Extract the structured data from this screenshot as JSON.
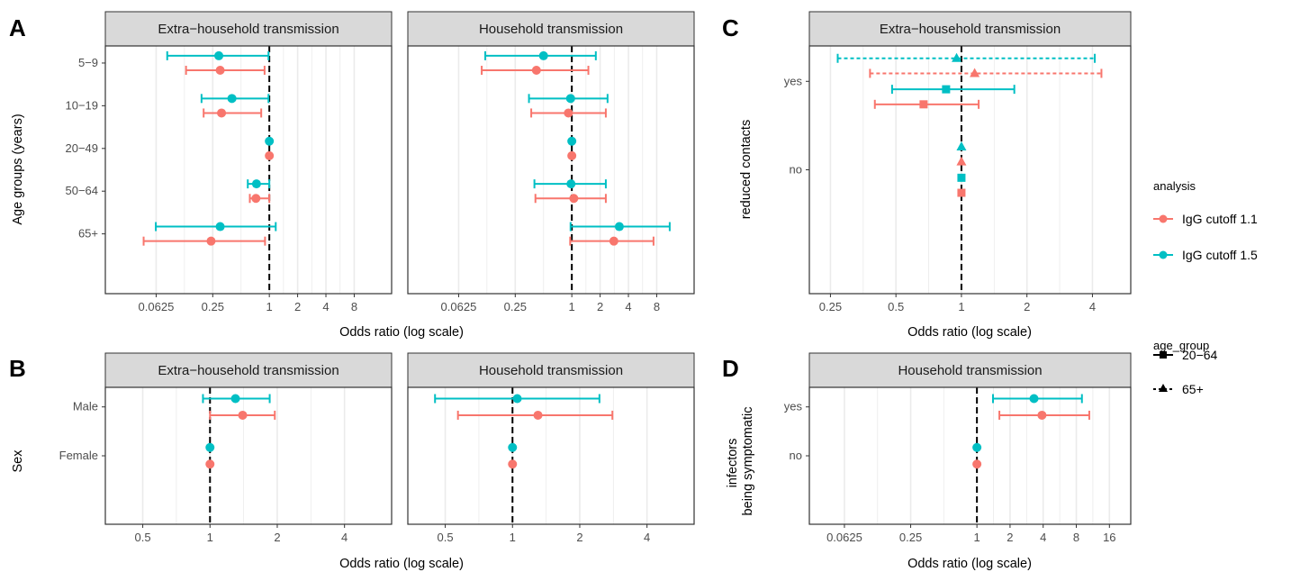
{
  "colors": {
    "cutoff_1_1": "#F8766D",
    "cutoff_1_5": "#00BFC4",
    "strip_fill": "#D9D9D9",
    "grid": "#EBEBEB",
    "border": "#333333"
  },
  "panel_labels": [
    "A",
    "B",
    "C",
    "D"
  ],
  "legend": {
    "analysis_title": "analysis",
    "analysis_items": [
      "IgG cutoff 1.1",
      "IgG cutoff 1.5"
    ],
    "age_group_title": "age_group",
    "age_group_items": [
      "20−64",
      "65+"
    ]
  },
  "chart_data": [
    {
      "id": "A-extra",
      "panel": "A",
      "type": "scatter",
      "title": "Extra−household transmission",
      "xlabel": "Odds ratio (log scale)",
      "ylabel": "Age groups (years)",
      "xscale": "log2",
      "xticks": [
        0.0625,
        0.25,
        1,
        2,
        4,
        8
      ],
      "xtick_labels": [
        "0.0625",
        "0.25",
        "1",
        "2",
        "4",
        "8"
      ],
      "xlim": [
        0.018,
        20
      ],
      "ref_line": 1,
      "categories": [
        "5−9",
        "10−19",
        "20−49",
        "50−64",
        "65+"
      ],
      "series": [
        {
          "name": "IgG cutoff 1.1",
          "color_key": "cutoff_1_1",
          "offset": 0.17,
          "marker": "circle",
          "estimate": [
            0.3,
            0.31,
            1.0,
            0.72,
            0.24
          ],
          "lower": [
            0.13,
            0.2,
            null,
            0.62,
            0.046
          ],
          "upper": [
            0.89,
            0.82,
            null,
            1.0,
            0.9
          ]
        },
        {
          "name": "IgG cutoff 1.5",
          "color_key": "cutoff_1_5",
          "offset": -0.17,
          "marker": "circle",
          "estimate": [
            0.29,
            0.4,
            1.0,
            0.73,
            0.3
          ],
          "lower": [
            0.082,
            0.19,
            null,
            0.59,
            0.062
          ],
          "upper": [
            0.98,
            0.98,
            null,
            1.0,
            1.17
          ]
        }
      ]
    },
    {
      "id": "A-household",
      "panel": "A",
      "type": "scatter",
      "title": "Household transmission",
      "xlabel": "Odds ratio (log scale)",
      "xscale": "log2",
      "xticks": [
        0.0625,
        0.25,
        1,
        2,
        4,
        8
      ],
      "xtick_labels": [
        "0.0625",
        "0.25",
        "1",
        "2",
        "4",
        "8"
      ],
      "xlim": [
        0.018,
        20
      ],
      "ref_line": 1,
      "categories": [
        "5−9",
        "10−19",
        "20−49",
        "50−64",
        "65+"
      ],
      "series": [
        {
          "name": "IgG cutoff 1.1",
          "color_key": "cutoff_1_1",
          "offset": 0.17,
          "marker": "circle",
          "estimate": [
            0.42,
            0.92,
            1.0,
            1.05,
            2.8
          ],
          "lower": [
            0.11,
            0.37,
            null,
            0.41,
            0.96
          ],
          "upper": [
            1.5,
            2.3,
            null,
            2.3,
            7.4
          ]
        },
        {
          "name": "IgG cutoff 1.5",
          "color_key": "cutoff_1_5",
          "offset": -0.17,
          "marker": "circle",
          "estimate": [
            0.5,
            0.97,
            1.0,
            0.98,
            3.2
          ],
          "lower": [
            0.12,
            0.35,
            null,
            0.4,
            0.97
          ],
          "upper": [
            1.8,
            2.4,
            null,
            2.3,
            11
          ]
        }
      ]
    },
    {
      "id": "B-extra",
      "panel": "B",
      "type": "scatter",
      "title": "Extra−household transmission",
      "xlabel": "Odds ratio (log scale)",
      "ylabel": "Sex",
      "xscale": "log2",
      "xticks": [
        0.5,
        1,
        2,
        4
      ],
      "xtick_labels": [
        "0.5",
        "1",
        "2",
        "4"
      ],
      "xlim": [
        0.34,
        6.5
      ],
      "ref_line": 1,
      "categories": [
        "Male",
        "Female"
      ],
      "series": [
        {
          "name": "IgG cutoff 1.1",
          "color_key": "cutoff_1_1",
          "offset": 0.17,
          "marker": "circle",
          "estimate": [
            1.4,
            1.0
          ],
          "lower": [
            1.0,
            null
          ],
          "upper": [
            1.95,
            null
          ]
        },
        {
          "name": "IgG cutoff 1.5",
          "color_key": "cutoff_1_5",
          "offset": -0.17,
          "marker": "circle",
          "estimate": [
            1.3,
            1.0
          ],
          "lower": [
            0.93,
            null
          ],
          "upper": [
            1.85,
            null
          ]
        }
      ]
    },
    {
      "id": "B-household",
      "panel": "B",
      "type": "scatter",
      "title": "Household transmission",
      "xlabel": "Odds ratio (log scale)",
      "xscale": "log2",
      "xticks": [
        0.5,
        1,
        2,
        4
      ],
      "xtick_labels": [
        "0.5",
        "1",
        "2",
        "4"
      ],
      "xlim": [
        0.34,
        6.5
      ],
      "ref_line": 1,
      "categories": [
        "Male",
        "Female"
      ],
      "series": [
        {
          "name": "IgG cutoff 1.1",
          "color_key": "cutoff_1_1",
          "offset": 0.17,
          "marker": "circle",
          "estimate": [
            1.3,
            1.0
          ],
          "lower": [
            0.57,
            null
          ],
          "upper": [
            2.8,
            null
          ]
        },
        {
          "name": "IgG cutoff 1.5",
          "color_key": "cutoff_1_5",
          "offset": -0.17,
          "marker": "circle",
          "estimate": [
            1.05,
            1.0
          ],
          "lower": [
            0.45,
            null
          ],
          "upper": [
            2.45,
            null
          ]
        }
      ]
    },
    {
      "id": "C-extra",
      "panel": "C",
      "type": "scatter",
      "title": "Extra−household transmission",
      "xlabel": "Odds ratio (log scale)",
      "ylabel": "reduced contacts",
      "xscale": "log2",
      "xticks": [
        0.25,
        0.5,
        1,
        2,
        4
      ],
      "xtick_labels": [
        "0.25",
        "0.5",
        "1",
        "2",
        "4"
      ],
      "xlim": [
        0.2,
        6.0
      ],
      "ref_line": 1,
      "categories": [
        "yes",
        "no"
      ],
      "series": [
        {
          "name": "IgG cutoff 1.1",
          "age_group": "20−64",
          "color_key": "cutoff_1_1",
          "offset": 0.26,
          "marker": "square",
          "dash": "solid",
          "estimate": [
            0.67,
            1.0
          ],
          "lower": [
            0.4,
            null
          ],
          "upper": [
            1.2,
            null
          ]
        },
        {
          "name": "IgG cutoff 1.5",
          "age_group": "20−64",
          "color_key": "cutoff_1_5",
          "offset": 0.09,
          "marker": "square",
          "dash": "solid",
          "estimate": [
            0.85,
            1.0
          ],
          "lower": [
            0.48,
            null
          ],
          "upper": [
            1.75,
            null
          ]
        },
        {
          "name": "IgG cutoff 1.1",
          "age_group": "65+",
          "color_key": "cutoff_1_1",
          "offset": -0.09,
          "marker": "triangle",
          "dash": "dotted",
          "estimate": [
            1.15,
            1.0
          ],
          "lower": [
            0.38,
            null
          ],
          "upper": [
            4.4,
            null
          ]
        },
        {
          "name": "IgG cutoff 1.5",
          "age_group": "65+",
          "color_key": "cutoff_1_5",
          "offset": -0.26,
          "marker": "triangle",
          "dash": "dotted",
          "estimate": [
            0.95,
            1.0
          ],
          "lower": [
            0.27,
            null
          ],
          "upper": [
            4.1,
            null
          ]
        }
      ]
    },
    {
      "id": "D-household",
      "panel": "D",
      "type": "scatter",
      "title": "Household transmission",
      "xlabel": "Odds ratio (log scale)",
      "ylabel": "infectors\nbeing symptomatic",
      "xscale": "log2",
      "xticks": [
        0.0625,
        0.25,
        1,
        2,
        4,
        8,
        16
      ],
      "xtick_labels": [
        "0.0625",
        "0.25",
        "1",
        "2",
        "4",
        "8",
        "16"
      ],
      "xlim": [
        0.03,
        25
      ],
      "ref_line": 1,
      "categories": [
        "yes",
        "no"
      ],
      "series": [
        {
          "name": "IgG cutoff 1.1",
          "color_key": "cutoff_1_1",
          "offset": 0.17,
          "marker": "circle",
          "estimate": [
            3.9,
            1.0
          ],
          "lower": [
            1.6,
            null
          ],
          "upper": [
            10.5,
            null
          ]
        },
        {
          "name": "IgG cutoff 1.5",
          "color_key": "cutoff_1_5",
          "offset": -0.17,
          "marker": "circle",
          "estimate": [
            3.3,
            1.0
          ],
          "lower": [
            1.4,
            null
          ],
          "upper": [
            9.0,
            null
          ]
        }
      ]
    }
  ]
}
